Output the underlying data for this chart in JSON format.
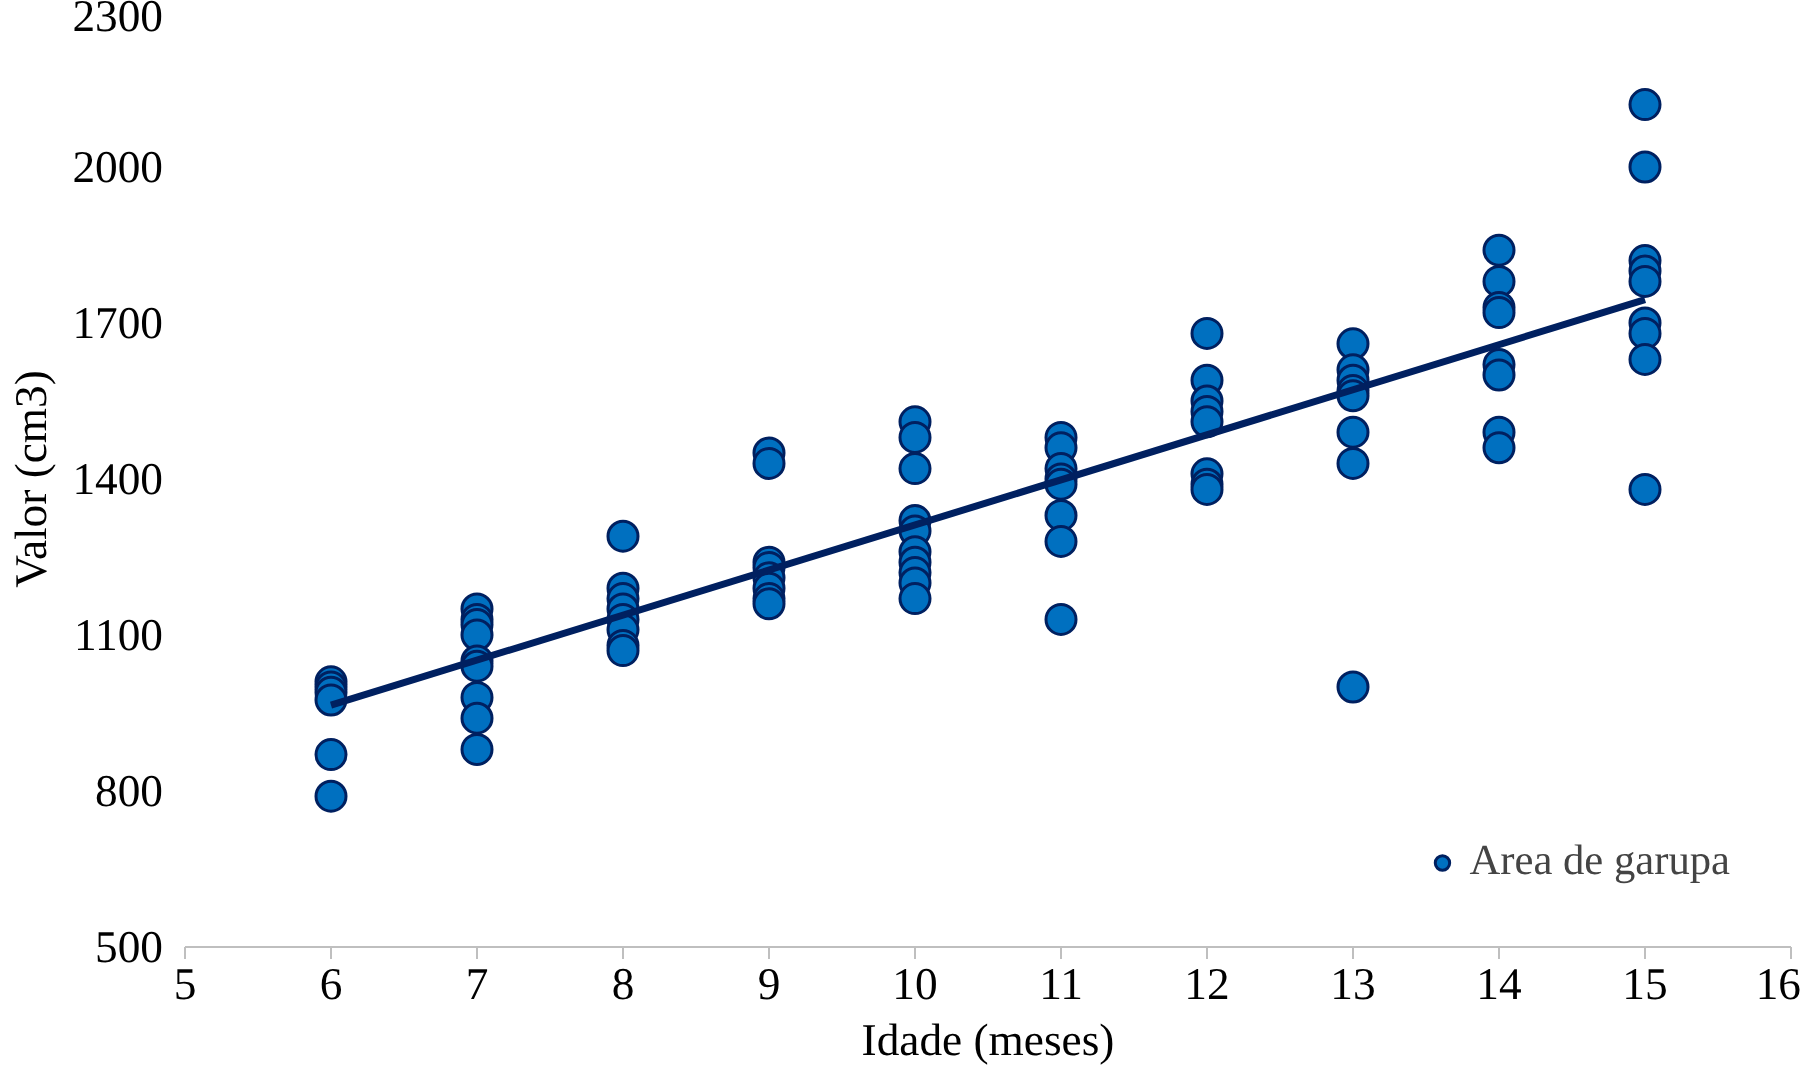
{
  "chart_data": {
    "type": "scatter",
    "xlabel": "Idade (meses)",
    "ylabel": "Valor (cm3)",
    "xlim": [
      5,
      16
    ],
    "xticks": [
      5,
      6,
      7,
      8,
      9,
      10,
      11,
      12,
      13,
      14,
      15,
      16
    ],
    "ylim": [
      500,
      2300
    ],
    "yticks": [
      500,
      800,
      1100,
      1400,
      1700,
      2000,
      2300
    ],
    "grid": false,
    "legend": "bottom right",
    "series": [
      {
        "name": "Area de garupa",
        "color": "#0070c0",
        "marker": "circle",
        "x": [
          6,
          6,
          6,
          6,
          6,
          6,
          7,
          7,
          7,
          7,
          7,
          7,
          7,
          7,
          7,
          8,
          8,
          8,
          8,
          8,
          8,
          8,
          8,
          9,
          9,
          9,
          9,
          9,
          9,
          9,
          9,
          10,
          10,
          10,
          10,
          10,
          10,
          10,
          10,
          10,
          10,
          11,
          11,
          11,
          11,
          11,
          11,
          11,
          11,
          12,
          12,
          12,
          12,
          12,
          12,
          12,
          12,
          13,
          13,
          13,
          13,
          13,
          13,
          13,
          13,
          14,
          14,
          14,
          14,
          14,
          14,
          14,
          14,
          15,
          15,
          15,
          15,
          15,
          15,
          15,
          15,
          15
        ],
        "values": [
          1010,
          1000,
          990,
          975,
          870,
          790,
          1150,
          1130,
          1120,
          1100,
          1050,
          1040,
          980,
          940,
          880,
          1290,
          1190,
          1170,
          1150,
          1130,
          1110,
          1080,
          1070,
          1450,
          1430,
          1240,
          1230,
          1210,
          1190,
          1170,
          1160,
          1510,
          1480,
          1420,
          1320,
          1300,
          1260,
          1240,
          1220,
          1200,
          1170,
          1480,
          1460,
          1420,
          1400,
          1390,
          1330,
          1280,
          1130,
          1680,
          1590,
          1550,
          1530,
          1510,
          1410,
          1390,
          1380,
          1660,
          1610,
          1590,
          1570,
          1560,
          1490,
          1430,
          1000,
          1840,
          1780,
          1730,
          1720,
          1620,
          1600,
          1490,
          1460,
          2120,
          2000,
          1820,
          1800,
          1780,
          1700,
          1680,
          1630,
          1380
        ]
      },
      {
        "color": "#002060",
        "type": "line",
        "marker": "none",
        "x": [
          6,
          15
        ],
        "values": [
          965,
          1745
        ]
      }
    ]
  }
}
